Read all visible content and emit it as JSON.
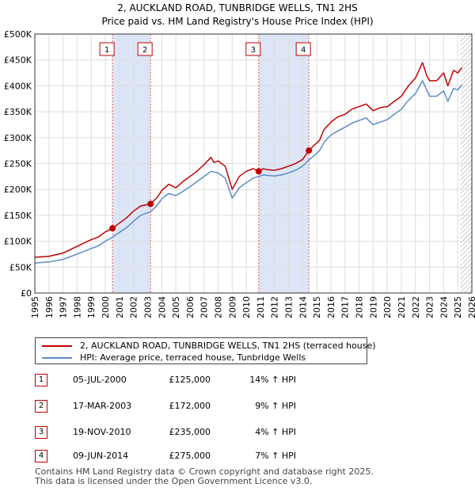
{
  "chart_data": {
    "type": "line",
    "title": "2, AUCKLAND ROAD, TUNBRIDGE WELLS, TN1 2HS",
    "subtitle": "Price paid vs. HM Land Registry's House Price Index (HPI)",
    "xlim": [
      1995,
      2026
    ],
    "ylim": [
      0,
      500000
    ],
    "x_ticks": [
      "1995",
      "1996",
      "1997",
      "1998",
      "1999",
      "2000",
      "2001",
      "2002",
      "2003",
      "2004",
      "2005",
      "2006",
      "2007",
      "2008",
      "2009",
      "2010",
      "2011",
      "2012",
      "2013",
      "2014",
      "2015",
      "2016",
      "2017",
      "2018",
      "2019",
      "2020",
      "2021",
      "2022",
      "2023",
      "2024",
      "2025",
      "2026"
    ],
    "y_ticks": [
      {
        "value": 0,
        "label": "£0"
      },
      {
        "value": 50000,
        "label": "£50K"
      },
      {
        "value": 100000,
        "label": "£100K"
      },
      {
        "value": 150000,
        "label": "£150K"
      },
      {
        "value": 200000,
        "label": "£200K"
      },
      {
        "value": 250000,
        "label": "£250K"
      },
      {
        "value": 300000,
        "label": "£300K"
      },
      {
        "value": 350000,
        "label": "£350K"
      },
      {
        "value": 400000,
        "label": "£400K"
      },
      {
        "value": 450000,
        "label": "£450K"
      },
      {
        "value": 500000,
        "label": "£500K"
      }
    ],
    "shaded_ranges": [
      [
        2000.51,
        2003.21
      ],
      [
        2010.88,
        2014.44
      ]
    ],
    "future_hatch_start": 2025.2,
    "series": [
      {
        "name": "2, AUCKLAND ROAD, TUNBRIDGE WELLS, TN1 2HS (terraced house)",
        "color": "#c00000",
        "points": [
          [
            1995.0,
            69000
          ],
          [
            1996.0,
            71000
          ],
          [
            1997.0,
            77000
          ],
          [
            1998.0,
            90000
          ],
          [
            1999.0,
            103000
          ],
          [
            1999.5,
            108000
          ],
          [
            2000.0,
            118000
          ],
          [
            2000.51,
            125000
          ],
          [
            2001.0,
            135000
          ],
          [
            2001.5,
            145000
          ],
          [
            2002.0,
            158000
          ],
          [
            2002.5,
            168000
          ],
          [
            2003.21,
            172000
          ],
          [
            2003.7,
            185000
          ],
          [
            2004.0,
            198000
          ],
          [
            2004.5,
            210000
          ],
          [
            2005.0,
            203000
          ],
          [
            2005.5,
            215000
          ],
          [
            2006.0,
            225000
          ],
          [
            2006.5,
            235000
          ],
          [
            2007.0,
            248000
          ],
          [
            2007.5,
            262000
          ],
          [
            2007.7,
            252000
          ],
          [
            2008.0,
            255000
          ],
          [
            2008.5,
            245000
          ],
          [
            2009.0,
            200000
          ],
          [
            2009.5,
            225000
          ],
          [
            2010.0,
            235000
          ],
          [
            2010.5,
            240000
          ],
          [
            2010.88,
            235000
          ],
          [
            2011.2,
            240000
          ],
          [
            2011.5,
            238000
          ],
          [
            2012.0,
            237000
          ],
          [
            2012.5,
            240000
          ],
          [
            2013.0,
            245000
          ],
          [
            2013.5,
            250000
          ],
          [
            2014.0,
            258000
          ],
          [
            2014.44,
            275000
          ],
          [
            2014.8,
            285000
          ],
          [
            2015.2,
            295000
          ],
          [
            2015.5,
            315000
          ],
          [
            2016.0,
            330000
          ],
          [
            2016.5,
            340000
          ],
          [
            2017.0,
            345000
          ],
          [
            2017.5,
            355000
          ],
          [
            2018.0,
            360000
          ],
          [
            2018.5,
            365000
          ],
          [
            2019.0,
            352000
          ],
          [
            2019.5,
            358000
          ],
          [
            2020.0,
            360000
          ],
          [
            2020.5,
            370000
          ],
          [
            2021.0,
            380000
          ],
          [
            2021.5,
            400000
          ],
          [
            2022.0,
            415000
          ],
          [
            2022.5,
            445000
          ],
          [
            2022.8,
            420000
          ],
          [
            2023.0,
            410000
          ],
          [
            2023.5,
            410000
          ],
          [
            2024.0,
            425000
          ],
          [
            2024.3,
            400000
          ],
          [
            2024.7,
            430000
          ],
          [
            2025.0,
            425000
          ],
          [
            2025.3,
            435000
          ]
        ]
      },
      {
        "name": "HPI: Average price, terraced house, Tunbridge Wells",
        "color": "#5b8bc9",
        "points": [
          [
            1995.0,
            58000
          ],
          [
            1996.0,
            60000
          ],
          [
            1997.0,
            65000
          ],
          [
            1998.0,
            75000
          ],
          [
            1999.0,
            86000
          ],
          [
            1999.5,
            91000
          ],
          [
            2000.0,
            100000
          ],
          [
            2000.51,
            108000
          ],
          [
            2001.0,
            117000
          ],
          [
            2001.5,
            126000
          ],
          [
            2002.0,
            138000
          ],
          [
            2002.5,
            150000
          ],
          [
            2003.21,
            157000
          ],
          [
            2003.7,
            170000
          ],
          [
            2004.0,
            182000
          ],
          [
            2004.5,
            192000
          ],
          [
            2005.0,
            188000
          ],
          [
            2005.5,
            196000
          ],
          [
            2006.0,
            205000
          ],
          [
            2006.5,
            215000
          ],
          [
            2007.0,
            225000
          ],
          [
            2007.5,
            235000
          ],
          [
            2008.0,
            232000
          ],
          [
            2008.5,
            222000
          ],
          [
            2009.0,
            183000
          ],
          [
            2009.5,
            203000
          ],
          [
            2010.0,
            213000
          ],
          [
            2010.5,
            222000
          ],
          [
            2010.88,
            225000
          ],
          [
            2011.2,
            228000
          ],
          [
            2011.5,
            227000
          ],
          [
            2012.0,
            226000
          ],
          [
            2012.5,
            228000
          ],
          [
            2013.0,
            232000
          ],
          [
            2013.5,
            237000
          ],
          [
            2014.0,
            245000
          ],
          [
            2014.44,
            257000
          ],
          [
            2014.8,
            265000
          ],
          [
            2015.2,
            275000
          ],
          [
            2015.5,
            290000
          ],
          [
            2016.0,
            305000
          ],
          [
            2016.5,
            313000
          ],
          [
            2017.0,
            320000
          ],
          [
            2017.5,
            328000
          ],
          [
            2018.0,
            333000
          ],
          [
            2018.5,
            338000
          ],
          [
            2019.0,
            325000
          ],
          [
            2019.5,
            330000
          ],
          [
            2020.0,
            335000
          ],
          [
            2020.5,
            345000
          ],
          [
            2021.0,
            355000
          ],
          [
            2021.5,
            372000
          ],
          [
            2022.0,
            385000
          ],
          [
            2022.5,
            410000
          ],
          [
            2022.8,
            392000
          ],
          [
            2023.0,
            380000
          ],
          [
            2023.5,
            380000
          ],
          [
            2024.0,
            390000
          ],
          [
            2024.3,
            370000
          ],
          [
            2024.7,
            395000
          ],
          [
            2025.0,
            392000
          ],
          [
            2025.3,
            402000
          ]
        ]
      }
    ],
    "sales": [
      {
        "num": "1",
        "x": 2000.51,
        "price": 125000
      },
      {
        "num": "2",
        "x": 2003.21,
        "price": 172000
      },
      {
        "num": "3",
        "x": 2010.88,
        "price": 235000
      },
      {
        "num": "4",
        "x": 2014.44,
        "price": 275000
      }
    ]
  },
  "legend": {
    "property": "2, AUCKLAND ROAD, TUNBRIDGE WELLS, TN1 2HS (terraced house)",
    "hpi": "HPI: Average price, terraced house, Tunbridge Wells"
  },
  "sales_table": [
    {
      "num": "1",
      "date": "05-JUL-2000",
      "price": "£125,000",
      "hpi": "14% ↑ HPI"
    },
    {
      "num": "2",
      "date": "17-MAR-2003",
      "price": "£172,000",
      "hpi": "9% ↑ HPI"
    },
    {
      "num": "3",
      "date": "19-NOV-2010",
      "price": "£235,000",
      "hpi": "4% ↑ HPI"
    },
    {
      "num": "4",
      "date": "09-JUN-2014",
      "price": "£275,000",
      "hpi": "7% ↑ HPI"
    }
  ],
  "footer": {
    "line1": "Contains HM Land Registry data © Crown copyright and database right 2025.",
    "line2": "This data is licensed under the Open Government Licence v3.0."
  },
  "colors": {
    "property": "#c00000",
    "hpi": "#5b8bc9",
    "shade": "#dce6f7",
    "grid": "#dddddd"
  }
}
